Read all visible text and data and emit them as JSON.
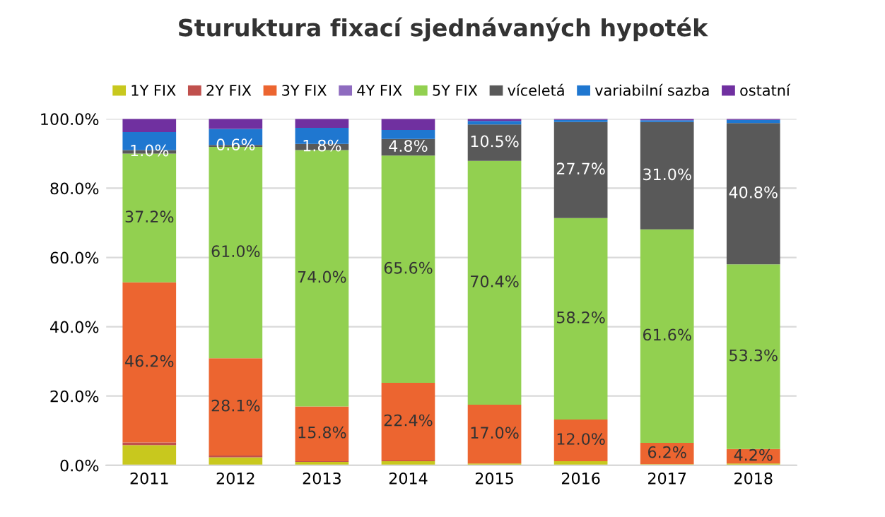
{
  "chart_data": {
    "type": "bar",
    "title": "Sturuktura fixací sjednávaných hypoték",
    "stacked": true,
    "categories": [
      "2011",
      "2012",
      "2013",
      "2014",
      "2015",
      "2016",
      "2017",
      "2018"
    ],
    "series": [
      {
        "name": "1Y FIX",
        "color": "#c8c81e",
        "values": [
          5.8,
          2.3,
          1.0,
          1.2,
          0.5,
          1.2,
          0.3,
          0.5
        ]
      },
      {
        "name": "2Y FIX",
        "color": "#c0504d",
        "values": [
          0.8,
          0.5,
          0.2,
          0.2,
          0,
          0,
          0,
          0
        ]
      },
      {
        "name": "3Y FIX",
        "color": "#ec6530",
        "values": [
          46.2,
          28.1,
          15.8,
          22.4,
          17.0,
          12.0,
          6.2,
          4.2
        ],
        "value_labels": [
          "46.2%",
          "28.1%",
          "15.8%",
          "22.4%",
          "17.0%",
          "12.0%",
          "6.2%",
          "4.2%"
        ]
      },
      {
        "name": "4Y FIX",
        "color": "#8e6bbf",
        "values": [
          0,
          0,
          0,
          0,
          0,
          0,
          0,
          0
        ]
      },
      {
        "name": "5Y FIX",
        "color": "#92d050",
        "values": [
          37.2,
          61.0,
          74.0,
          65.6,
          70.4,
          58.2,
          61.6,
          53.3
        ],
        "value_labels": [
          "37.2%",
          "61.0%",
          "74.0%",
          "65.6%",
          "70.4%",
          "58.2%",
          "61.6%",
          "53.3%"
        ]
      },
      {
        "name": "víceletá",
        "color": "#595959",
        "values": [
          1.0,
          0.6,
          1.8,
          4.8,
          10.5,
          27.7,
          31.0,
          40.8
        ],
        "value_labels": [
          "1.0%",
          "0.6%",
          "1.8%",
          "4.8%",
          "10.5%",
          "27.7%",
          "31.0%",
          "40.8%"
        ]
      },
      {
        "name": "variabilní sazba",
        "color": "#1f77d0",
        "values": [
          5.2,
          4.6,
          4.6,
          2.6,
          1.0,
          0.6,
          0.5,
          0.9
        ]
      },
      {
        "name": "ostatní",
        "color": "#7030a0",
        "values": [
          3.8,
          2.9,
          2.6,
          3.2,
          0.6,
          0.3,
          0.4,
          0.3
        ]
      }
    ],
    "ylim": [
      0,
      100
    ],
    "yticks": [
      {
        "value": 0,
        "label": "0.0%"
      },
      {
        "value": 20,
        "label": "20.0%"
      },
      {
        "value": 40,
        "label": "40.0%"
      },
      {
        "value": 60,
        "label": "60.0%"
      },
      {
        "value": 80,
        "label": "80.0%"
      },
      {
        "value": 100,
        "label": "100.0%"
      }
    ],
    "grid": "y",
    "legend": "top"
  }
}
